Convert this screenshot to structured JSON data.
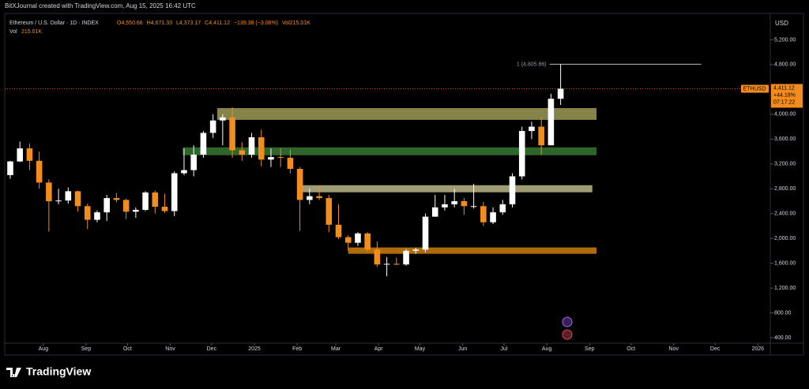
{
  "header": {
    "attribution": "BitXJournal created with TradingView.com, Aug 15, 2025 16:42 UTC",
    "brand": "TradingView"
  },
  "chart_data": {
    "type": "candlestick",
    "title": "Ethereum / U.S. Dollar · 1D · INDEX",
    "legend_values": [
      "O4,550.66",
      "H4,671.33",
      "L4,373.17",
      "C4,411.12",
      "−139.38 (−3.06%)",
      "Vol215.01K"
    ],
    "volume_label": "Vol",
    "volume_value": "215.01K",
    "currency": "USD",
    "symbol": "ETHUSD",
    "last": {
      "value": 4411.12,
      "label": "4,411.12"
    },
    "change": "+44.18%",
    "countdown": "07:17:22",
    "up_color": "#ffffff",
    "down_color": "#f28d1d",
    "x": [
      -24,
      -17,
      -10,
      -3,
      4,
      11,
      18,
      25,
      32,
      39,
      46,
      53,
      60,
      67,
      74,
      81,
      88,
      95,
      102,
      109,
      116,
      123,
      130,
      137,
      144,
      151,
      158,
      165,
      172,
      179,
      186,
      193,
      200,
      207,
      214,
      221,
      228,
      235,
      242,
      249,
      256,
      263,
      270,
      277,
      284,
      291,
      298,
      305,
      312,
      319,
      326,
      333,
      340,
      347,
      354,
      361,
      368,
      375
    ],
    "open": [
      3020,
      3240,
      3450,
      3250,
      2900,
      2600,
      2610,
      2760,
      2520,
      2300,
      2420,
      2650,
      2620,
      2430,
      2460,
      2740,
      2510,
      2440,
      3050,
      3100,
      3350,
      3700,
      3900,
      3950,
      3420,
      3350,
      3630,
      3270,
      3310,
      3300,
      3120,
      2620,
      2680,
      2650,
      2220,
      2020,
      1930,
      2080,
      1820,
      1580,
      1590,
      1580,
      1800,
      1820,
      2350,
      2500,
      2550,
      2600,
      2520,
      2520,
      2260,
      2420,
      2550,
      3000,
      3730,
      3800,
      3500,
      4250
    ],
    "high": [
      3250,
      3560,
      3530,
      3400,
      2950,
      2800,
      2820,
      2770,
      2560,
      2450,
      2700,
      2730,
      2640,
      2500,
      2760,
      2770,
      2720,
      3080,
      3450,
      3500,
      3730,
      4000,
      4000,
      4110,
      3550,
      3700,
      3750,
      3450,
      3450,
      3430,
      3150,
      2800,
      2850,
      2700,
      2550,
      2050,
      2100,
      2100,
      1950,
      1700,
      1690,
      1830,
      1850,
      2400,
      2700,
      2700,
      2800,
      2650,
      2880,
      2590,
      2500,
      2620,
      3050,
      3800,
      3880,
      3950,
      4330,
      4805.86
    ],
    "low": [
      2960,
      3230,
      3100,
      2800,
      2110,
      2550,
      2560,
      2430,
      2150,
      2260,
      2280,
      2580,
      2310,
      2330,
      2440,
      2400,
      2410,
      2360,
      3020,
      3000,
      3300,
      3620,
      3500,
      3300,
      3250,
      3300,
      3160,
      3150,
      3150,
      3050,
      2120,
      2550,
      2620,
      2100,
      1990,
      1800,
      1880,
      1780,
      1540,
      1390,
      1570,
      1560,
      1750,
      1780,
      2350,
      2450,
      2500,
      2380,
      2480,
      2200,
      2230,
      2380,
      2500,
      2950,
      3600,
      3350,
      3500,
      4150
    ],
    "close": [
      3240,
      3450,
      3250,
      2900,
      2600,
      2610,
      2760,
      2520,
      2300,
      2420,
      2650,
      2620,
      2430,
      2460,
      2740,
      2510,
      2440,
      3050,
      3100,
      3350,
      3700,
      3900,
      3950,
      3420,
      3350,
      3630,
      3270,
      3310,
      3300,
      3120,
      2620,
      2680,
      2650,
      2220,
      2020,
      1930,
      2080,
      1820,
      1580,
      1590,
      1580,
      1800,
      1820,
      2350,
      2500,
      2550,
      2600,
      2520,
      2520,
      2260,
      2420,
      2550,
      3000,
      3730,
      3800,
      3500,
      4250,
      4411.12
    ],
    "zones": [
      {
        "low": 3910,
        "high": 4100,
        "x": [
          126,
          401
        ],
        "color": "#8c8a4e"
      },
      {
        "low": 3340,
        "high": 3467,
        "x": [
          101,
          401
        ],
        "color": "#2f6a2c"
      },
      {
        "low": 2743,
        "high": 2857,
        "x": [
          185,
          398
        ],
        "color": "#a6a47a"
      },
      {
        "low": 1752,
        "high": 1854,
        "x": [
          221,
          401
        ],
        "color": "#b8720c"
      }
    ],
    "level": {
      "value": 4805.86,
      "label": "1 (4,805.86)",
      "x": [
        367,
        477
      ],
      "color": "#bdbdbd"
    },
    "xlim": [
      -28,
      527
    ],
    "ylim": [
      311,
      5625
    ],
    "xticks": [
      {
        "value": 0,
        "label": "Aug"
      },
      {
        "value": 31,
        "label": "Sep"
      },
      {
        "value": 61,
        "label": "Oct"
      },
      {
        "value": 92,
        "label": "Nov"
      },
      {
        "value": 122,
        "label": "Dec"
      },
      {
        "value": 153,
        "label": "2025"
      },
      {
        "value": 184,
        "label": "Feb"
      },
      {
        "value": 212,
        "label": "Mar"
      },
      {
        "value": 243,
        "label": "Apr"
      },
      {
        "value": 273,
        "label": "May"
      },
      {
        "value": 304,
        "label": "Jun"
      },
      {
        "value": 334,
        "label": "Jul"
      },
      {
        "value": 365,
        "label": "Aug"
      },
      {
        "value": 396,
        "label": "Sep"
      },
      {
        "value": 426,
        "label": "Oct"
      },
      {
        "value": 457,
        "label": "Nov"
      },
      {
        "value": 487,
        "label": "Dec"
      },
      {
        "value": 518,
        "label": "2026"
      }
    ],
    "yticks": [
      {
        "value": 400,
        "label": "400.00"
      },
      {
        "value": 800,
        "label": "800.00"
      },
      {
        "value": 1200,
        "label": "1,200.00"
      },
      {
        "value": 1600,
        "label": "1,600.00"
      },
      {
        "value": 2000,
        "label": "2,000.00"
      },
      {
        "value": 2400,
        "label": "2,400.00"
      },
      {
        "value": 2800,
        "label": "2,800.00"
      },
      {
        "value": 3200,
        "label": "3,200.00"
      },
      {
        "value": 3600,
        "label": "3,600.00"
      },
      {
        "value": 4000,
        "label": "4,000.00"
      },
      {
        "value": 4800,
        "label": "4,800.00"
      },
      {
        "value": 5200,
        "label": "5,200.00"
      }
    ]
  }
}
